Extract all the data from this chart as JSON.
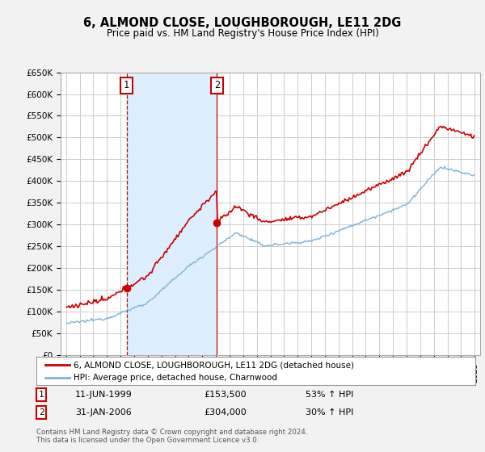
{
  "title": "6, ALMOND CLOSE, LOUGHBOROUGH, LE11 2DG",
  "subtitle": "Price paid vs. HM Land Registry's House Price Index (HPI)",
  "ylim": [
    0,
    650000
  ],
  "yticks": [
    0,
    50000,
    100000,
    150000,
    200000,
    250000,
    300000,
    350000,
    400000,
    450000,
    500000,
    550000,
    600000,
    650000
  ],
  "ytick_labels": [
    "£0",
    "£50K",
    "£100K",
    "£150K",
    "£200K",
    "£250K",
    "£300K",
    "£350K",
    "£400K",
    "£450K",
    "£500K",
    "£550K",
    "£600K",
    "£650K"
  ],
  "xlim_start": 1994.6,
  "xlim_end": 2025.4,
  "bg_color": "#f2f2f2",
  "plot_bg_color": "#ffffff",
  "grid_color": "#cccccc",
  "red_line_color": "#cc0000",
  "blue_line_color": "#7db3d8",
  "shade_color": "#ddeeff",
  "marker1_x": 1999.44,
  "marker1_y": 153500,
  "marker2_x": 2006.08,
  "marker2_y": 304000,
  "transaction1_date": "11-JUN-1999",
  "transaction1_price": "£153,500",
  "transaction1_note": "53% ↑ HPI",
  "transaction2_date": "31-JAN-2006",
  "transaction2_price": "£304,000",
  "transaction2_note": "30% ↑ HPI",
  "legend_line1": "6, ALMOND CLOSE, LOUGHBOROUGH, LE11 2DG (detached house)",
  "legend_line2": "HPI: Average price, detached house, Charnwood",
  "footer": "Contains HM Land Registry data © Crown copyright and database right 2024.\nThis data is licensed under the Open Government Licence v3.0."
}
